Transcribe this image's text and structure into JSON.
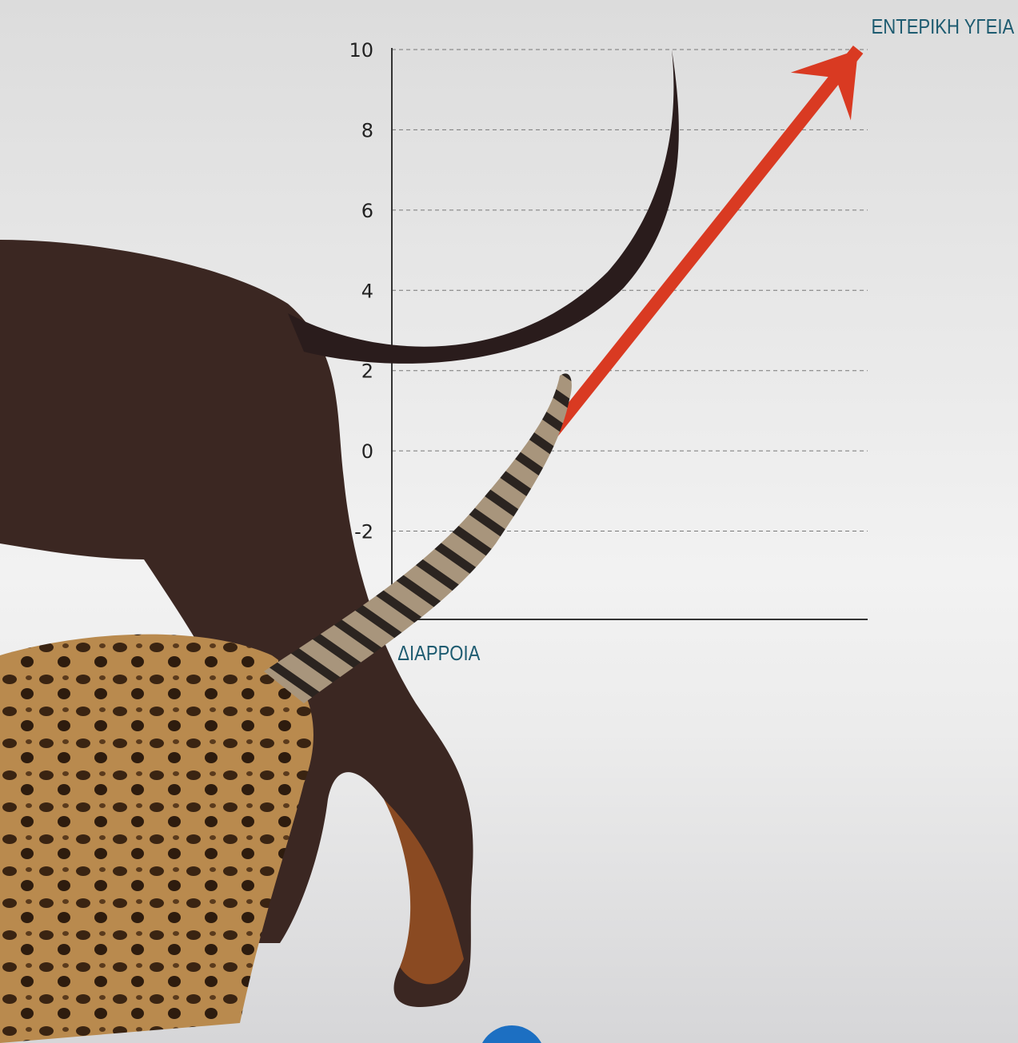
{
  "chart_data": {
    "type": "line",
    "y_axis_top_label": "ΕΝΤΕΡΙΚΗ ΥΓΕΙΑ",
    "y_axis_bottom_label": "ΔΙΑΡΡΟΙΑ",
    "x": [
      0.25,
      9.8
    ],
    "series": [
      {
        "color": "#d93a22",
        "values": [
          -4.2,
          10
        ]
      }
    ],
    "xlim": [
      0,
      10
    ],
    "ylim": [
      -4.2,
      10
    ],
    "yticks": [
      -2,
      0,
      2,
      4,
      6,
      8,
      10
    ],
    "grid": true
  }
}
